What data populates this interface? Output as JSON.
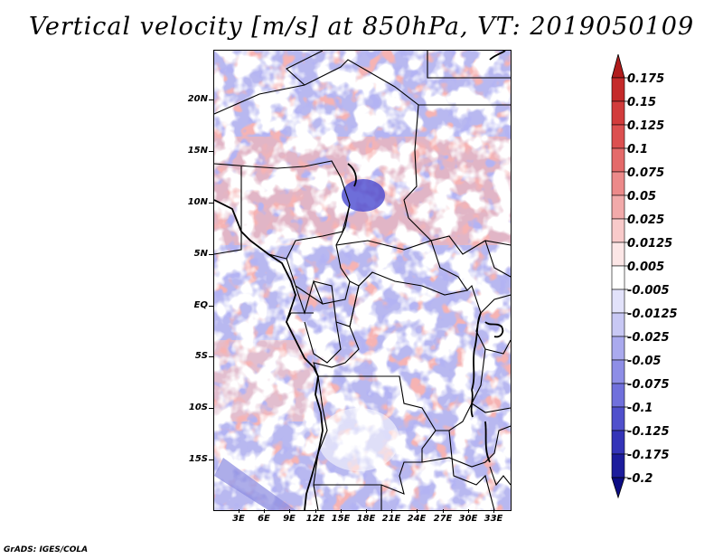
{
  "title": "Vertical velocity [m/s] at 850hPa, VT: 2019050109",
  "credit": "GrADS: IGES/COLA",
  "lat_labels": [
    "20N",
    "15N",
    "10N",
    "5N",
    "EQ",
    "5S",
    "10S",
    "15S"
  ],
  "lon_labels": [
    "3E",
    "6E",
    "9E",
    "12E",
    "15E",
    "18E",
    "21E",
    "24E",
    "27E",
    "30E",
    "33E"
  ],
  "colorbar": {
    "labels": [
      "0.175",
      "0.15",
      "0.125",
      "0.1",
      "0.075",
      "0.05",
      "0.025",
      "0.0125",
      "0.005",
      "-0.005",
      "-0.0125",
      "-0.025",
      "-0.05",
      "-0.075",
      "-0.1",
      "-0.125",
      "-0.175",
      "-0.2"
    ],
    "colors": [
      "#b01c1c",
      "#c42a2a",
      "#d23c3c",
      "#dc5050",
      "#e46a6a",
      "#ec8a8a",
      "#f2aaaa",
      "#f8caca",
      "#fce6e6",
      "#ffffff",
      "#e2e2fa",
      "#c8c8f4",
      "#aaaaee",
      "#8e8ee6",
      "#7070dc",
      "#5050cc",
      "#3434b8",
      "#1c1c9c",
      "#0c0c84"
    ]
  }
}
